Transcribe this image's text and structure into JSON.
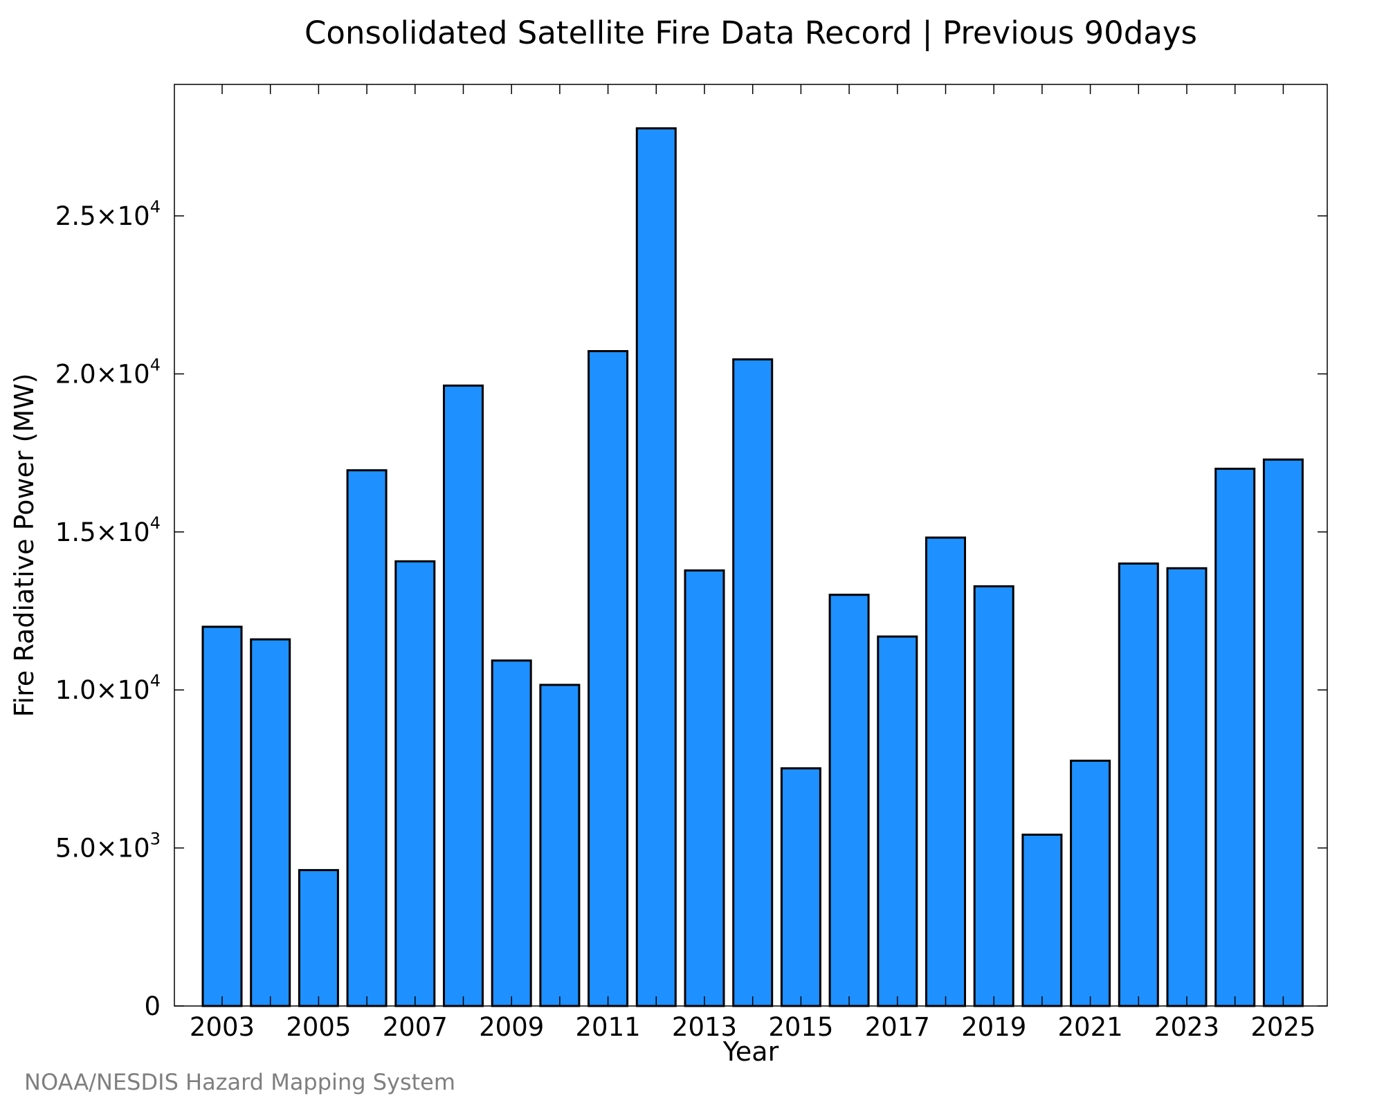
{
  "chart_data": {
    "type": "bar",
    "title": "Consolidated Satellite Fire Data Record | Previous 90days",
    "xlabel": "Year",
    "ylabel": "Fire Radiative Power (MW)",
    "credit": "NOAA/NESDIS Hazard Mapping System",
    "bar_color": "#1E90FF",
    "ylim": [
      0,
      29160
    ],
    "grid": false,
    "legend": "none",
    "categories": [
      "2003",
      "2004",
      "2005",
      "2006",
      "2007",
      "2008",
      "2009",
      "2010",
      "2011",
      "2012",
      "2013",
      "2014",
      "2015",
      "2016",
      "2017",
      "2018",
      "2019",
      "2020",
      "2021",
      "2022",
      "2023",
      "2024",
      "2025"
    ],
    "values": [
      12000,
      11600,
      4300,
      16950,
      14070,
      19630,
      10930,
      10160,
      20720,
      27770,
      13780,
      20460,
      7520,
      13010,
      11690,
      14820,
      13280,
      5420,
      7760,
      14000,
      13850,
      17000,
      17290
    ],
    "x_tick_labels": [
      "2003",
      "2005",
      "2007",
      "2009",
      "2011",
      "2013",
      "2015",
      "2017",
      "2019",
      "2021",
      "2023",
      "2025"
    ],
    "y_ticks": [
      {
        "value": 0,
        "mantissa": "0",
        "exponent": ""
      },
      {
        "value": 5000,
        "mantissa": "5.0×10",
        "exponent": "3"
      },
      {
        "value": 10000,
        "mantissa": "1.0×10",
        "exponent": "4"
      },
      {
        "value": 15000,
        "mantissa": "1.5×10",
        "exponent": "4"
      },
      {
        "value": 20000,
        "mantissa": "2.0×10",
        "exponent": "4"
      },
      {
        "value": 25000,
        "mantissa": "2.5×10",
        "exponent": "4"
      }
    ]
  }
}
